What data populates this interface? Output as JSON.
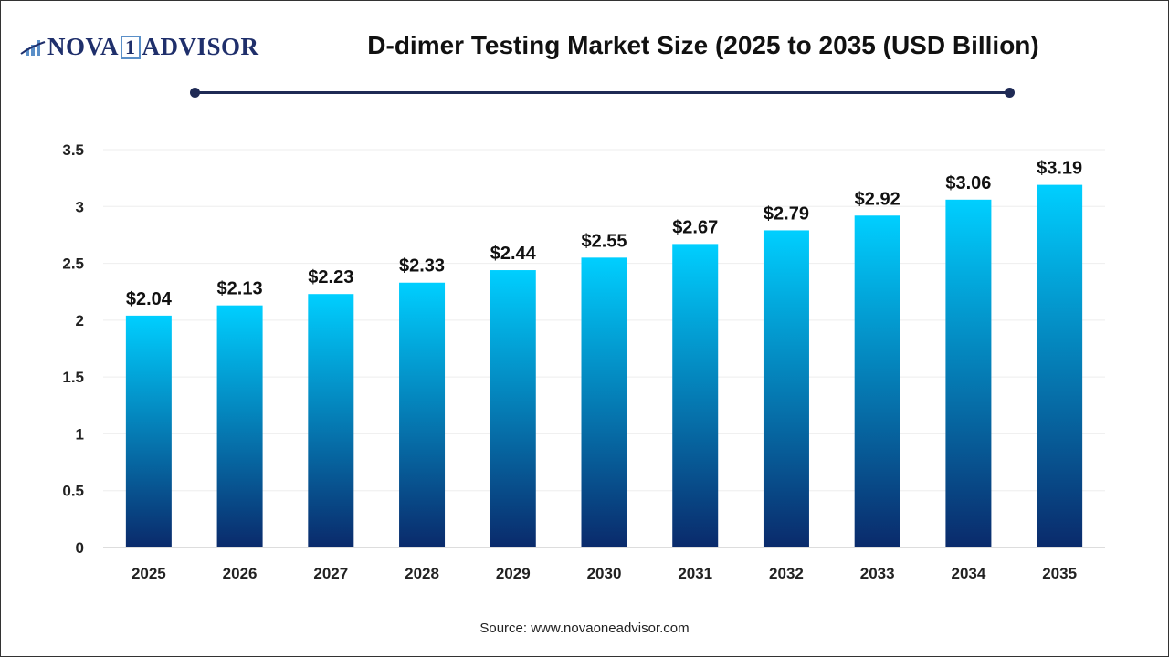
{
  "logo": {
    "text_left": "NOVA",
    "text_box": "1",
    "text_right": "ADVISOR"
  },
  "source": "Source: www.novaoneadvisor.com",
  "chart_data": {
    "type": "bar",
    "title": "D-dimer Testing Market Size (2025 to 2035 (USD Billion)",
    "categories": [
      "2025",
      "2026",
      "2027",
      "2028",
      "2029",
      "2030",
      "2031",
      "2032",
      "2033",
      "2034",
      "2035"
    ],
    "values": [
      2.04,
      2.13,
      2.23,
      2.33,
      2.44,
      2.55,
      2.67,
      2.79,
      2.92,
      3.06,
      3.19
    ],
    "data_labels": [
      "$2.04",
      "$2.13",
      "$2.23",
      "$2.33",
      "$2.44",
      "$2.55",
      "$2.67",
      "$2.79",
      "$2.92",
      "$3.06",
      "$3.19"
    ],
    "yticks": [
      "0",
      "0.5",
      "1",
      "1.5",
      "2",
      "2.5",
      "3",
      "3.5"
    ],
    "ylim": [
      0,
      3.5
    ],
    "grid": true,
    "colors": {
      "bar_top": "#00cfff",
      "bar_bottom": "#0a2a6b",
      "title_rule": "#1f2a55"
    }
  }
}
